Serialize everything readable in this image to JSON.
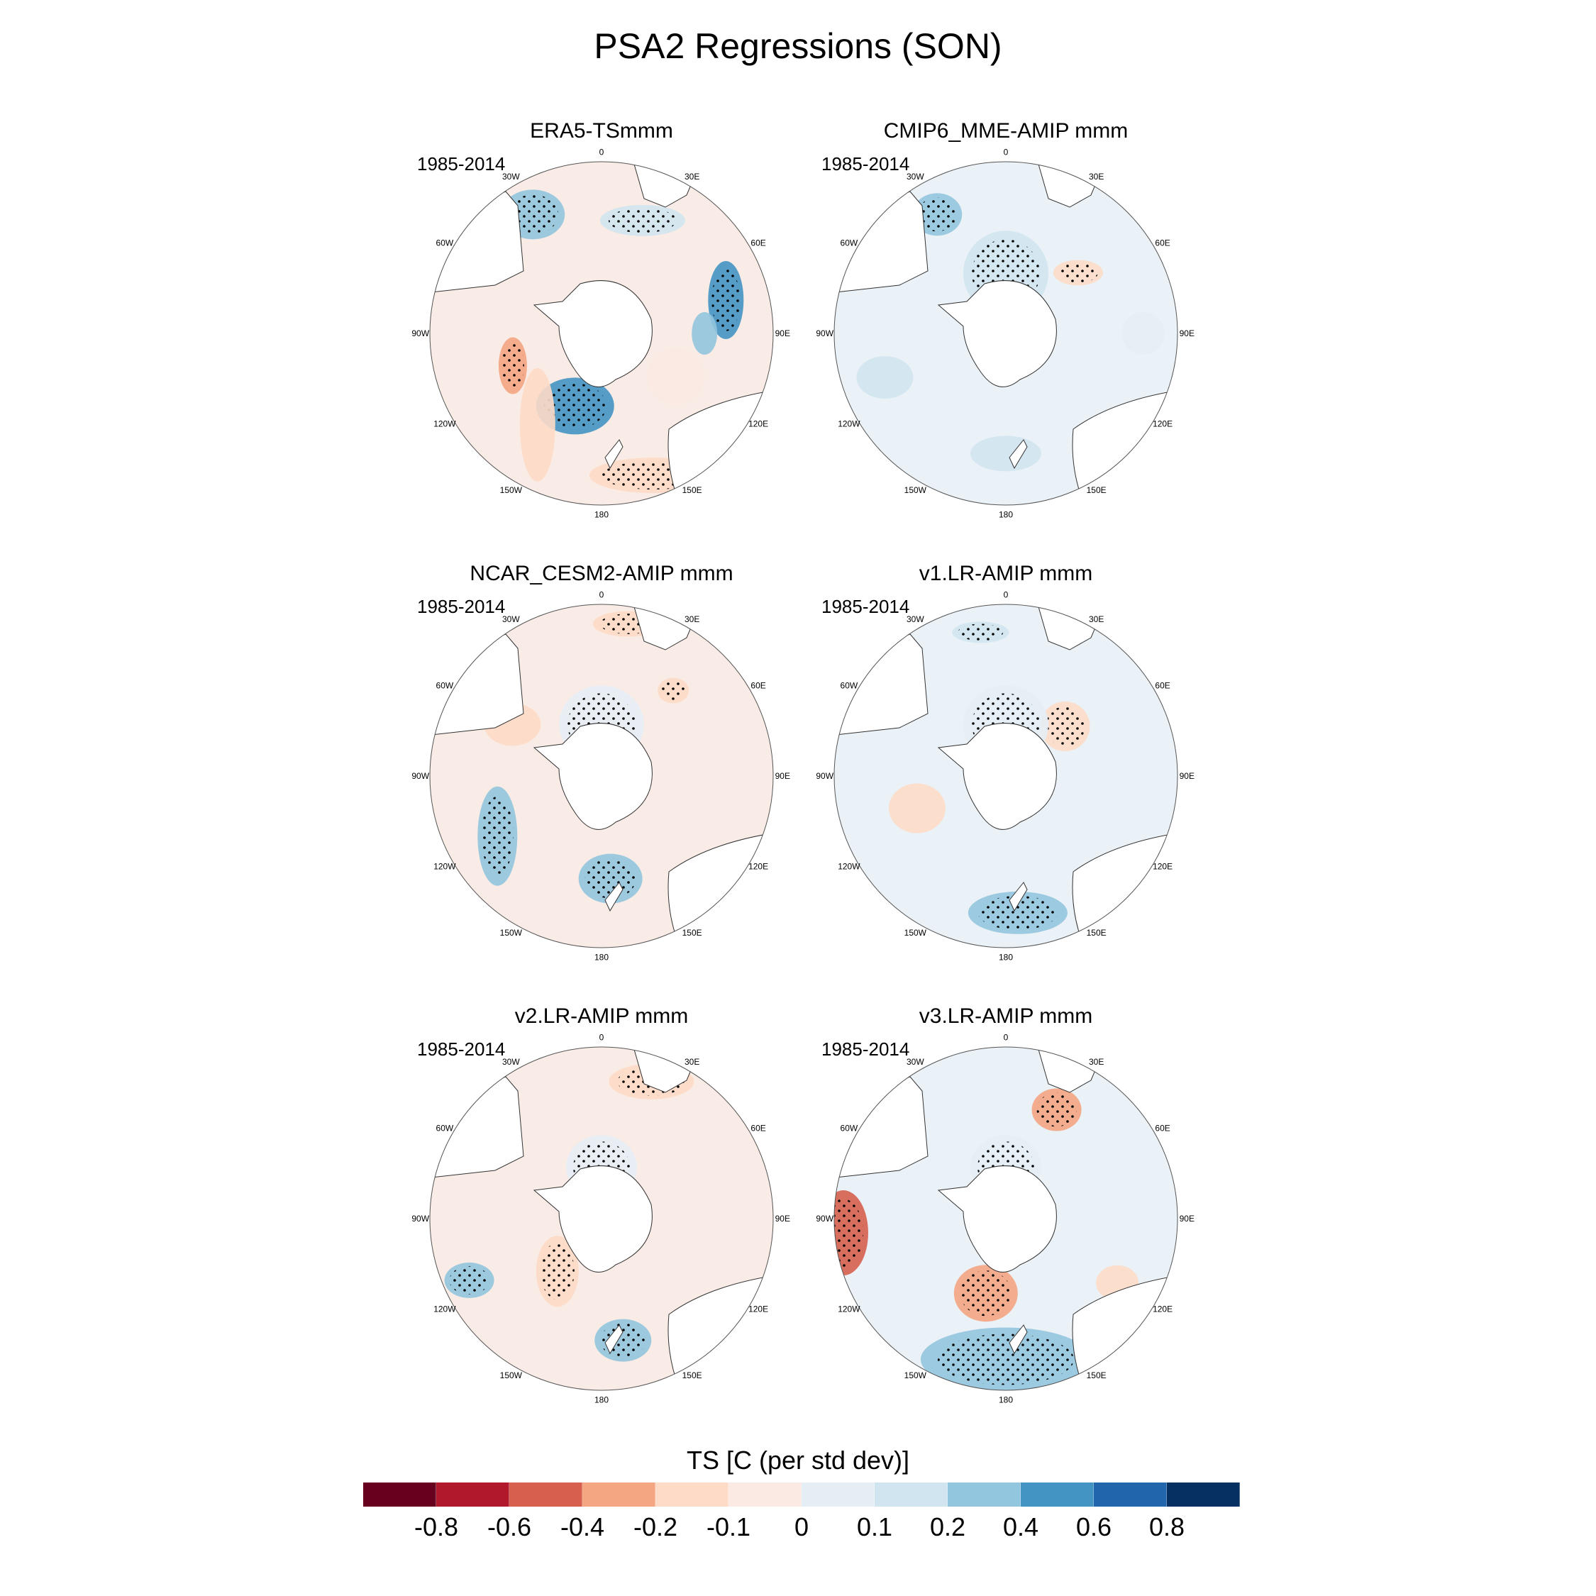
{
  "title": "PSA2 Regressions (SON)",
  "chart_data": {
    "type": "heatmap",
    "title": "PSA2 Regressions (SON)",
    "projection": "south-polar stereographic",
    "variable_label": "TS [C (per std dev)]",
    "longitude_labels": [
      "0",
      "30E",
      "60E",
      "90E",
      "120E",
      "150E",
      "180",
      "150W",
      "120W",
      "90W",
      "60W",
      "30W"
    ],
    "panels": [
      {
        "name": "ERA5-TSmmm",
        "period": "1985-2014"
      },
      {
        "name": "CMIP6_MME-AMIP  mmm",
        "period": "1985-2014"
      },
      {
        "name": "NCAR_CESM2-AMIP  mmm",
        "period": "1985-2014"
      },
      {
        "name": "v1.LR-AMIP  mmm",
        "period": "1985-2014"
      },
      {
        "name": "v2.LR-AMIP  mmm",
        "period": "1985-2014"
      },
      {
        "name": "v3.LR-AMIP  mmm",
        "period": "1985-2014"
      }
    ],
    "colorbar": {
      "colors": [
        "#67001f",
        "#b2182b",
        "#d6604d",
        "#f4a582",
        "#fddbc7",
        "#fbeae3",
        "#e6eef5",
        "#d1e5f0",
        "#92c5de",
        "#4393c3",
        "#2166ac",
        "#053061"
      ],
      "levels": [
        "-0.8",
        "-0.6",
        "-0.4",
        "-0.2",
        "-0.1",
        "0",
        "0.1",
        "0.2",
        "0.4",
        "0.6",
        "0.8"
      ]
    }
  }
}
